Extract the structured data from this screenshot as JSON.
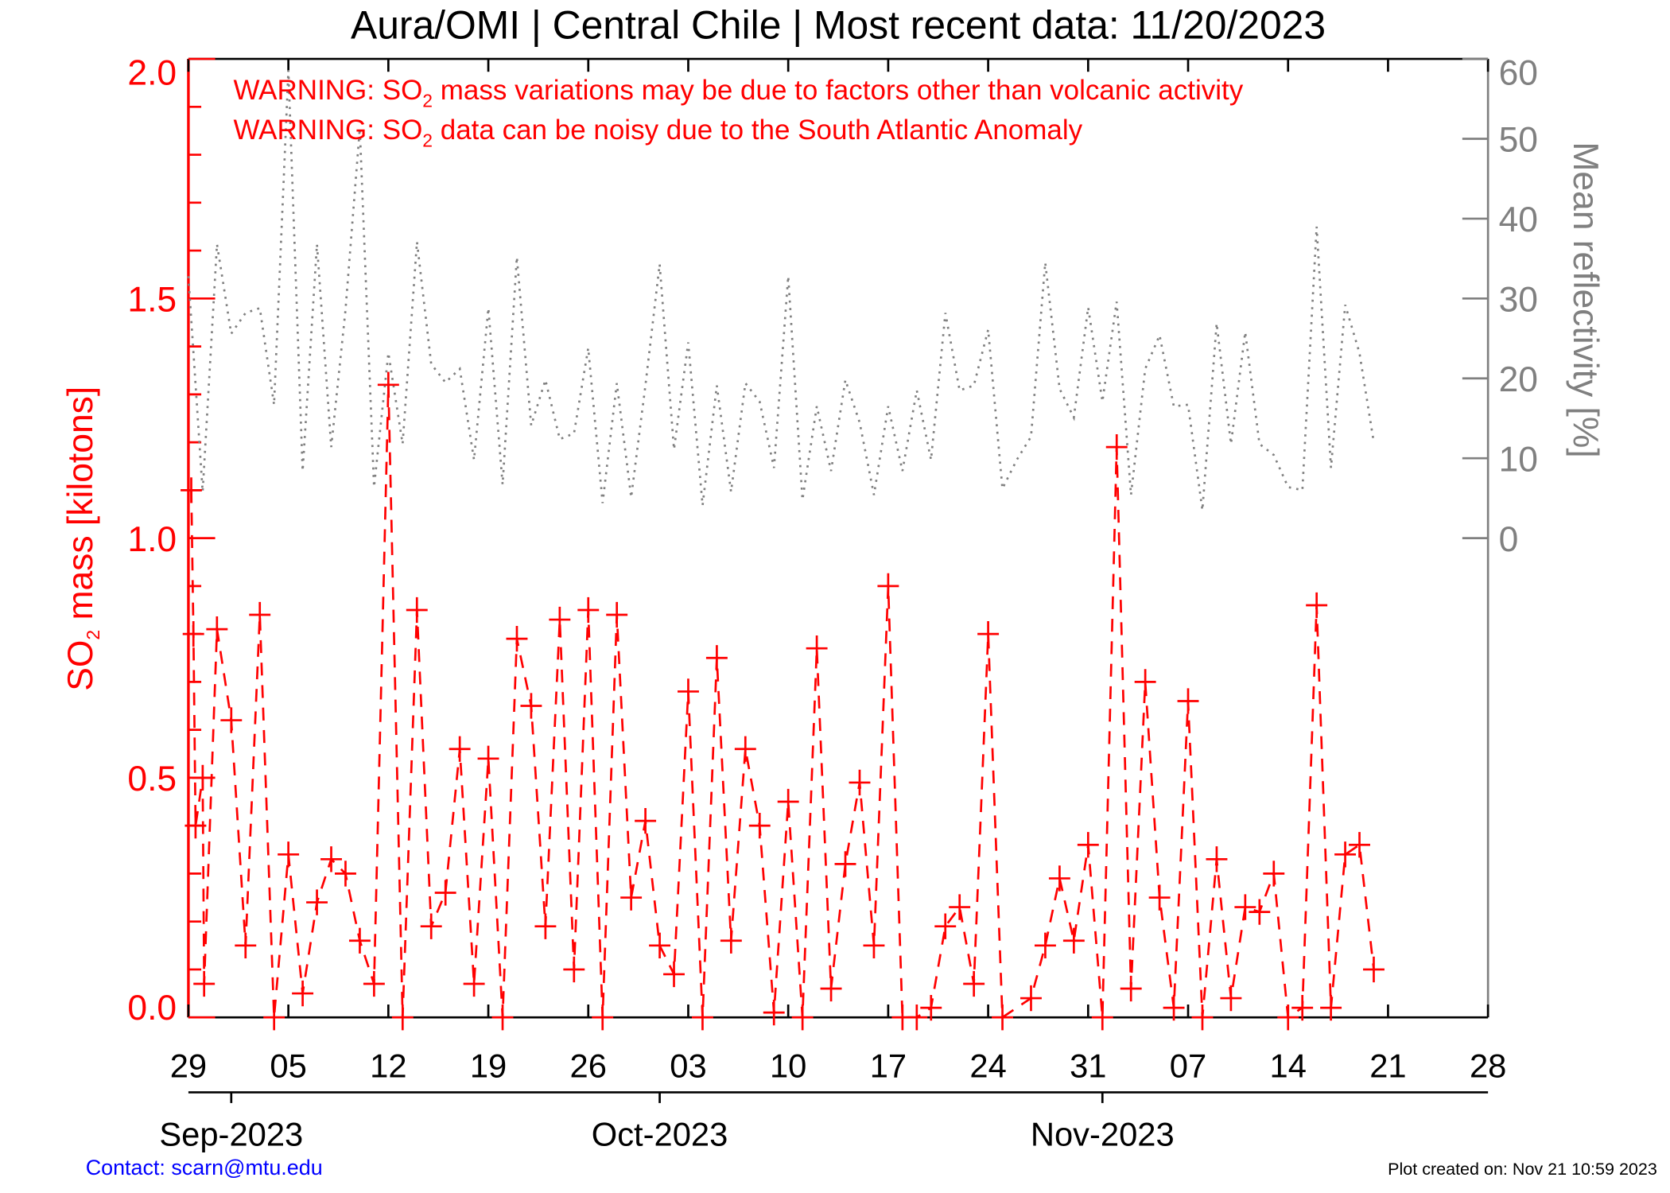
{
  "title": "Aura/OMI | Central Chile | Most recent data: 11/20/2023",
  "warnings": [
    {
      "prefix": "WARNING: SO",
      "sub": "2",
      "rest": " mass variations may be due to factors other than volcanic activity"
    },
    {
      "prefix": "WARNING: SO",
      "sub": "2",
      "rest": " data can be noisy due to the South Atlantic Anomaly"
    }
  ],
  "footer": {
    "contact": "Contact: scarn@mtu.edu",
    "created": "Plot created on: Nov 21 10:59 2023"
  },
  "colors": {
    "so2": "#ff0000",
    "reflectivity": "#808080",
    "contact": "#0000ff"
  },
  "chart_data": {
    "type": "line",
    "title": "Aura/OMI | Central Chile | Most recent data: 11/20/2023",
    "x_origin_date": "2023-08-29",
    "xlim_days": [
      0,
      91
    ],
    "xlabel_ticks": [
      {
        "day": 0,
        "label": "29"
      },
      {
        "day": 7,
        "label": "05"
      },
      {
        "day": 14,
        "label": "12"
      },
      {
        "day": 21,
        "label": "19"
      },
      {
        "day": 28,
        "label": "26"
      },
      {
        "day": 35,
        "label": "03"
      },
      {
        "day": 42,
        "label": "10"
      },
      {
        "day": 49,
        "label": "17"
      },
      {
        "day": 56,
        "label": "24"
      },
      {
        "day": 63,
        "label": "31"
      },
      {
        "day": 70,
        "label": "07"
      },
      {
        "day": 77,
        "label": "14"
      },
      {
        "day": 84,
        "label": "21"
      },
      {
        "day": 91,
        "label": "28"
      }
    ],
    "month_ticks": [
      {
        "day": 3,
        "label": "Sep-2023"
      },
      {
        "day": 33,
        "label": "Oct-2023"
      },
      {
        "day": 64,
        "label": "Nov-2023"
      }
    ],
    "left_axis": {
      "label_prefix": "SO",
      "label_sub": "2",
      "label_rest": " mass [kilotons]",
      "ylim": [
        0,
        2
      ],
      "ticks": [
        "0.0",
        "0.5",
        "1.0",
        "1.5",
        "2.0"
      ]
    },
    "right_axis": {
      "label": "Mean reflectivity [%]",
      "ylim_on_left_scale": [
        1.0,
        2.0
      ],
      "range": [
        0,
        60
      ],
      "ticks": [
        "0",
        "10",
        "20",
        "30",
        "40",
        "50",
        "60"
      ]
    },
    "series": [
      {
        "name": "SO2 mass",
        "axis": "left",
        "style": "dashed with plus markers",
        "points": [
          [
            0.2,
            1.1
          ],
          [
            0.35,
            0.8
          ],
          [
            0.5,
            0.4
          ],
          [
            1,
            0.5
          ],
          [
            1.1,
            0.07
          ],
          [
            2,
            0.81
          ],
          [
            3,
            0.62
          ],
          [
            4,
            0.15
          ],
          [
            5,
            0.84
          ],
          [
            6,
            0.0
          ],
          [
            7,
            0.34
          ],
          [
            8,
            0.05
          ],
          [
            9,
            0.24
          ],
          [
            10,
            0.33
          ],
          [
            11,
            0.3
          ],
          [
            12,
            0.16
          ],
          [
            13,
            0.07
          ],
          [
            14,
            1.32
          ],
          [
            15,
            0.0
          ],
          [
            16,
            0.85
          ],
          [
            17,
            0.19
          ],
          [
            18,
            0.26
          ],
          [
            19,
            0.56
          ],
          [
            20,
            0.07
          ],
          [
            21,
            0.54
          ],
          [
            22,
            0.0
          ],
          [
            23,
            0.79
          ],
          [
            24,
            0.65
          ],
          [
            25,
            0.19
          ],
          [
            26,
            0.83
          ],
          [
            27,
            0.1
          ],
          [
            28,
            0.85
          ],
          [
            29,
            0.0
          ],
          [
            30,
            0.84
          ],
          [
            31,
            0.25
          ],
          [
            32,
            0.41
          ],
          [
            33,
            0.15
          ],
          [
            34,
            0.09
          ],
          [
            35,
            0.68
          ],
          [
            36,
            0.0
          ],
          [
            37,
            0.75
          ],
          [
            38,
            0.16
          ],
          [
            39,
            0.56
          ],
          [
            40,
            0.4
          ],
          [
            41,
            0.01
          ],
          [
            42,
            0.45
          ],
          [
            43,
            0.0
          ],
          [
            44,
            0.77
          ],
          [
            45,
            0.06
          ],
          [
            46,
            0.32
          ],
          [
            47,
            0.49
          ],
          [
            48,
            0.15
          ],
          [
            49,
            0.9
          ],
          [
            50,
            0.0
          ],
          [
            51,
            0.0
          ],
          [
            52,
            0.02
          ],
          [
            53,
            0.19
          ],
          [
            54,
            0.23
          ],
          [
            55,
            0.07
          ],
          [
            56,
            0.8
          ],
          [
            57,
            0.0
          ],
          [
            59,
            0.04
          ],
          [
            60,
            0.15
          ],
          [
            61,
            0.29
          ],
          [
            62,
            0.16
          ],
          [
            63,
            0.36
          ],
          [
            64,
            0.0
          ],
          [
            65,
            1.19
          ],
          [
            66,
            0.06
          ],
          [
            67,
            0.7
          ],
          [
            68,
            0.25
          ],
          [
            69,
            0.02
          ],
          [
            70,
            0.66
          ],
          [
            71,
            0.0
          ],
          [
            72,
            0.33
          ],
          [
            73,
            0.04
          ],
          [
            74,
            0.23
          ],
          [
            75,
            0.22
          ],
          [
            76,
            0.3
          ],
          [
            77,
            0.0
          ],
          [
            78,
            0.02
          ],
          [
            79,
            0.86
          ],
          [
            80,
            0.02
          ],
          [
            81,
            0.34
          ],
          [
            82,
            0.36
          ],
          [
            83,
            0.1
          ]
        ]
      },
      {
        "name": "Mean reflectivity",
        "axis": "right",
        "style": "dotted",
        "x_start_day": 0,
        "values": [
          32.8,
          5.8,
          36.8,
          25.6,
          28.2,
          28.8,
          16.7,
          58.6,
          8.4,
          36.8,
          11.4,
          28.5,
          51.3,
          6.4,
          23.2,
          11.8,
          37.1,
          21.8,
          19.5,
          21.2,
          9.8,
          28.8,
          6.7,
          35.2,
          14.1,
          19.8,
          12.4,
          13.1,
          23.8,
          4.4,
          19.4,
          5.1,
          19.1,
          34.3,
          11.1,
          24.5,
          4.1,
          19.1,
          5.8,
          19.4,
          17.1,
          8.8,
          32.8,
          4.8,
          16.5,
          8.4,
          19.8,
          14.5,
          5.4,
          16.5,
          8.4,
          18.5,
          9.8,
          28.2,
          18.5,
          19.1,
          26.1,
          6.2,
          9.8,
          12.7,
          34.5,
          18.7,
          15.1,
          28.9,
          17.1,
          29.6,
          5.4,
          21.2,
          25.4,
          16.5,
          16.7,
          3.5,
          26.9,
          11.8,
          25.8,
          11.8,
          10.4,
          6.4,
          6.0,
          39.0,
          8.8,
          29.2,
          23.2,
          12.0
        ]
      }
    ]
  }
}
